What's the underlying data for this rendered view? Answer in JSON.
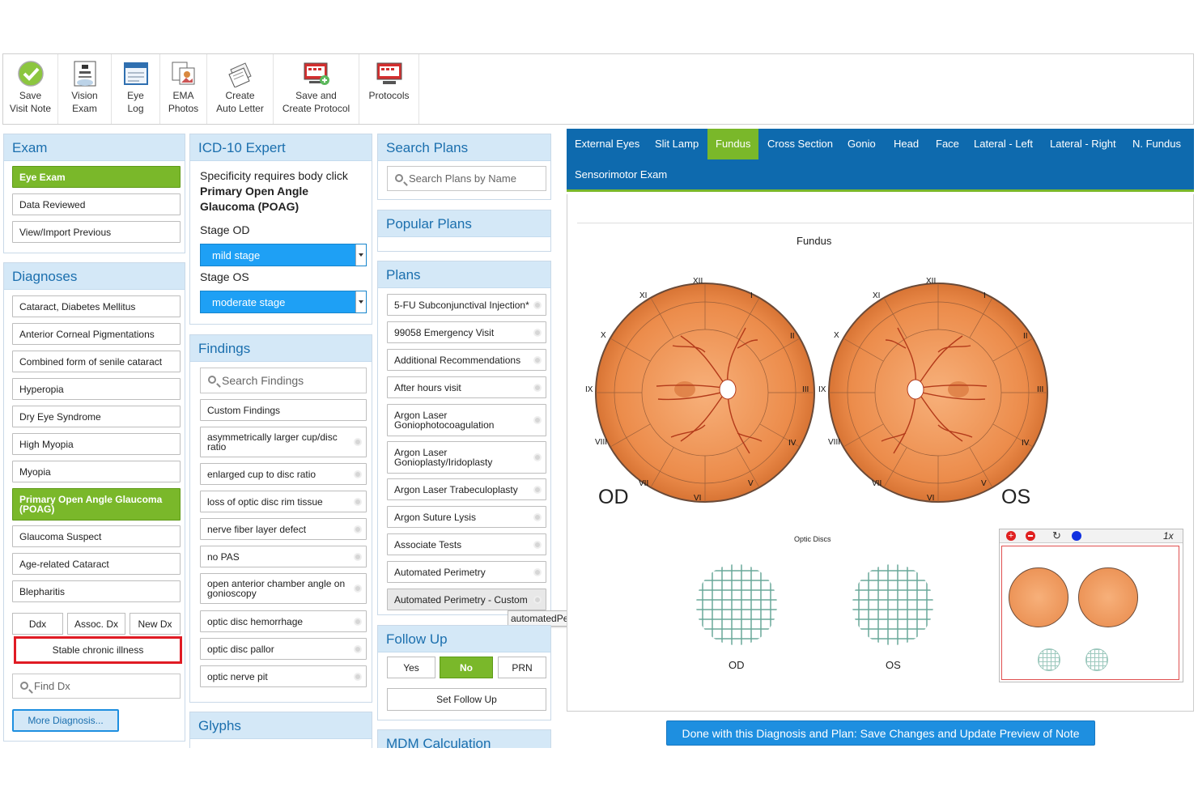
{
  "toolbar": [
    {
      "label": "Save\nVisit Note",
      "icon": "checkmark-icon"
    },
    {
      "label": "Vision\nExam",
      "icon": "eye-chart-icon"
    },
    {
      "label": "Eye\nLog",
      "icon": "calendar-icon"
    },
    {
      "label": "EMA\nPhotos",
      "icon": "photos-icon"
    },
    {
      "label": "Create\nAuto Letter",
      "icon": "letter-icon"
    },
    {
      "label": "Save and\nCreate Protocol",
      "icon": "save-protocol-icon"
    },
    {
      "label": "Protocols",
      "icon": "protocols-icon"
    }
  ],
  "exam": {
    "title": "Exam",
    "items": [
      "Eye Exam",
      "Data Reviewed",
      "View/Import Previous"
    ]
  },
  "diagnoses": {
    "title": "Diagnoses",
    "items": [
      "Cataract, Diabetes Mellitus",
      "Anterior Corneal Pigmentations",
      "Combined form of senile cataract",
      "Hyperopia",
      "Dry Eye Syndrome",
      "High Myopia",
      "Myopia",
      "Primary Open Angle Glaucoma (POAG)",
      "Glaucoma Suspect",
      "Age-related Cataract",
      "Blepharitis"
    ],
    "buttons": [
      "Ddx",
      "Assoc. Dx",
      "New Dx"
    ],
    "stable": "Stable chronic illness",
    "find_placeholder": "Find Dx",
    "more": "More Diagnosis..."
  },
  "icd": {
    "title": "ICD-10 Expert",
    "line1": "Specificity requires body click",
    "dx": "Primary Open Angle Glaucoma (POAG)",
    "stage_od_label": "Stage OD",
    "stage_od": "mild stage",
    "stage_os_label": "Stage OS",
    "stage_os": "moderate stage"
  },
  "findings": {
    "title": "Findings",
    "search": "Search Findings",
    "items": [
      "Custom Findings",
      "asymmetrically larger cup/disc ratio",
      "enlarged cup to disc ratio",
      "loss of optic disc rim tissue",
      "nerve fiber layer defect",
      "no PAS",
      "open anterior chamber angle on gonioscopy",
      "optic disc hemorrhage",
      "optic disc pallor",
      "optic nerve pit"
    ]
  },
  "glyphs": {
    "title": "Glyphs"
  },
  "search_plans": {
    "title": "Search Plans",
    "placeholder": "Search Plans by Name"
  },
  "popular_plans": {
    "title": "Popular Plans"
  },
  "plans": {
    "title": "Plans",
    "items": [
      "5-FU Subconjunctival Injection*",
      "99058 Emergency Visit",
      "Additional Recommendations",
      "After hours visit",
      "Argon Laser Goniophotocoagulation",
      "Argon Laser Gonioplasty/Iridoplasty",
      "Argon Laser Trabeculoplasty",
      "Argon Suture Lysis",
      "Associate Tests",
      "Automated Perimetry",
      "Automated Perimetry - Custom"
    ],
    "tooltip": "automatedPerimetrycustom"
  },
  "followup": {
    "title": "Follow Up",
    "options": [
      "Yes",
      "No",
      "PRN"
    ],
    "set": "Set Follow Up"
  },
  "mdm": {
    "title": "MDM Calculation"
  },
  "tabs": [
    "External Eyes",
    "Slit Lamp",
    "Fundus",
    "Cross Section",
    "Gonio",
    "Head",
    "Face",
    "Lateral - Left",
    "Lateral - Right",
    "N. Fundus",
    "Sensorimotor Exam"
  ],
  "drawing": {
    "title": "Fundus",
    "od": "OD",
    "os": "OS",
    "clock": [
      "XII",
      "I",
      "II",
      "III",
      "IV",
      "V",
      "VI",
      "VII",
      "VIII",
      "IX",
      "X",
      "XI"
    ],
    "optic_discs": "Optic Discs",
    "disc_od": "OD",
    "disc_os": "OS",
    "zoom": "1x"
  },
  "done_button": "Done with this Diagnosis and Plan: Save Changes and Update Preview of Note",
  "colors": {
    "accent_green": "#7ab82a",
    "tab_blue": "#0e6aae",
    "select_blue": "#1ea0f5",
    "fundus_orange": "#e8894a"
  }
}
